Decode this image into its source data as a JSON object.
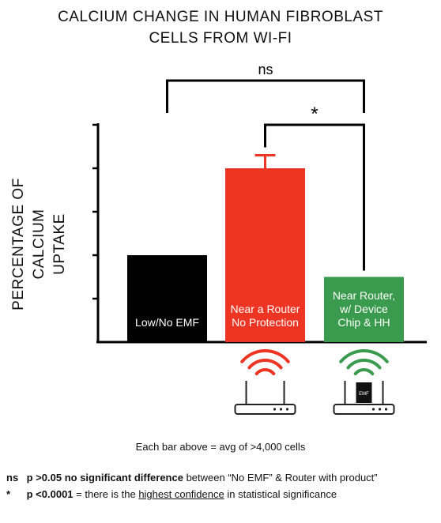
{
  "chart_data": {
    "type": "bar",
    "title_line1": "CALCIUM CHANGE IN HUMAN FIBROBLAST",
    "title_line2": "CELLS FROM WI-FI",
    "ylabel_line1": "PERCENTAGE OF CALCIUM",
    "ylabel_line2": "UPTAKE",
    "ylim": [
      0,
      5
    ],
    "yticks": [
      1,
      2,
      3,
      4,
      5
    ],
    "categories": [
      {
        "line1": "Low/No EMF",
        "line2": "",
        "line3": ""
      },
      {
        "line1": "Near a Router",
        "line2": "No Protection",
        "line3": ""
      },
      {
        "line1": "Near Router,",
        "line2": "w/ Device",
        "line3": "Chip & HH"
      }
    ],
    "values": [
      2.0,
      4.0,
      1.5
    ],
    "error": [
      0,
      0.3,
      0
    ],
    "colors": [
      "#000000",
      "#ee3524",
      "#3a9a4e"
    ],
    "brackets": [
      {
        "from": 0,
        "to": 2,
        "label": "ns"
      },
      {
        "from": 1,
        "to": 2,
        "label": "*"
      }
    ],
    "icon_chip_label": "EMF"
  },
  "caption": "Each bar above = avg of >4,000 cells",
  "notes": {
    "ns_symbol": "ns",
    "ns_text_a": "p >0.05",
    "ns_text_b": "no significant difference",
    "ns_text_c": "between “No EMF” & Router with product”",
    "star_symbol": "*",
    "star_text_a": "p <0.0001",
    "star_text_b": "= there is the",
    "star_text_c": "highest confidence",
    "star_text_d": "in statistical significance"
  }
}
